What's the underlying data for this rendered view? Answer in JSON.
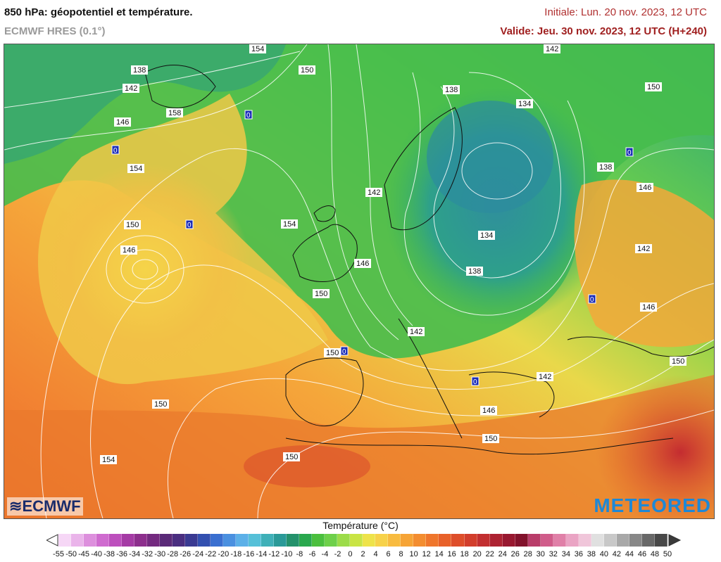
{
  "header": {
    "title": "850 hPa: géopotentiel et température.",
    "model": "ECMWF HRES (0.1°)",
    "initial": "Initiale: Lun. 20 nov. 2023, 12 UTC",
    "valid": "Valide: Jeu. 30 nov. 2023, 12 UTC (H+240)"
  },
  "map": {
    "contour_labels": [
      "154",
      "150",
      "138",
      "142",
      "158",
      "146",
      "154",
      "150",
      "146",
      "154",
      "150",
      "150",
      "150",
      "154",
      "142",
      "146",
      "150",
      "138",
      "134",
      "142",
      "134",
      "138",
      "142",
      "150",
      "138",
      "146",
      "142",
      "146",
      "150",
      "146",
      "150",
      "142"
    ],
    "zero_markers": [
      "0",
      "0",
      "0",
      "0",
      "0",
      "0",
      "0"
    ]
  },
  "logos": {
    "left": "ECMWF",
    "right": "METEORED"
  },
  "legend": {
    "title": "Température (°C)",
    "ticks": [
      "-55",
      "-50",
      "-45",
      "-40",
      "-38",
      "-36",
      "-34",
      "-32",
      "-30",
      "-28",
      "-26",
      "-24",
      "-22",
      "-20",
      "-18",
      "-16",
      "-14",
      "-12",
      "-10",
      "-8",
      "-6",
      "-4",
      "-2",
      "0",
      "2",
      "4",
      "6",
      "8",
      "10",
      "12",
      "14",
      "16",
      "18",
      "20",
      "22",
      "24",
      "26",
      "28",
      "30",
      "32",
      "34",
      "36",
      "38",
      "40",
      "42",
      "44",
      "46",
      "48",
      "50"
    ],
    "colors": [
      "#f6d7f6",
      "#eab4ea",
      "#dd8fdd",
      "#cf6bcf",
      "#bd4fbd",
      "#a53ba5",
      "#8d2f8d",
      "#742a80",
      "#5a2a78",
      "#4a2e80",
      "#3a3a92",
      "#3350b0",
      "#3a6fd0",
      "#4a90e0",
      "#5cb0e8",
      "#56c0d8",
      "#3fb0b8",
      "#2a9a98",
      "#24926c",
      "#2aa84e",
      "#4bbf3e",
      "#6ed04a",
      "#9cdc4a",
      "#c9e444",
      "#eee34a",
      "#f7d24a",
      "#f8bb40",
      "#f6a436",
      "#f38d30",
      "#ef762c",
      "#e8612a",
      "#de4e2a",
      "#d23e2c",
      "#c22f30",
      "#ad2232",
      "#981830",
      "#82122c",
      "#b93d6a",
      "#d05c8a",
      "#e080a8",
      "#eaa4c4",
      "#f0c6da",
      "#e0e0e0",
      "#c8c8c8",
      "#a8a8a8",
      "#888888",
      "#686868",
      "#484848"
    ],
    "tick_label_under": [
      "-55",
      "-50",
      "-45",
      "-40",
      "-38",
      "-36",
      "-34",
      "-32",
      "-30",
      "-28",
      "-26",
      "-24",
      "-22",
      "-20",
      "-18",
      "-16",
      "-14",
      "-12",
      "-10",
      "-8",
      "-6",
      "-4",
      "-2",
      "0",
      "2",
      "4",
      "6",
      "8",
      "10",
      "12",
      "14",
      "16",
      "18",
      "20",
      "22",
      "24",
      "26",
      "28",
      "30",
      "32",
      "34",
      "36",
      "38",
      "40",
      "42",
      "44",
      "46",
      "48",
      "50"
    ]
  }
}
